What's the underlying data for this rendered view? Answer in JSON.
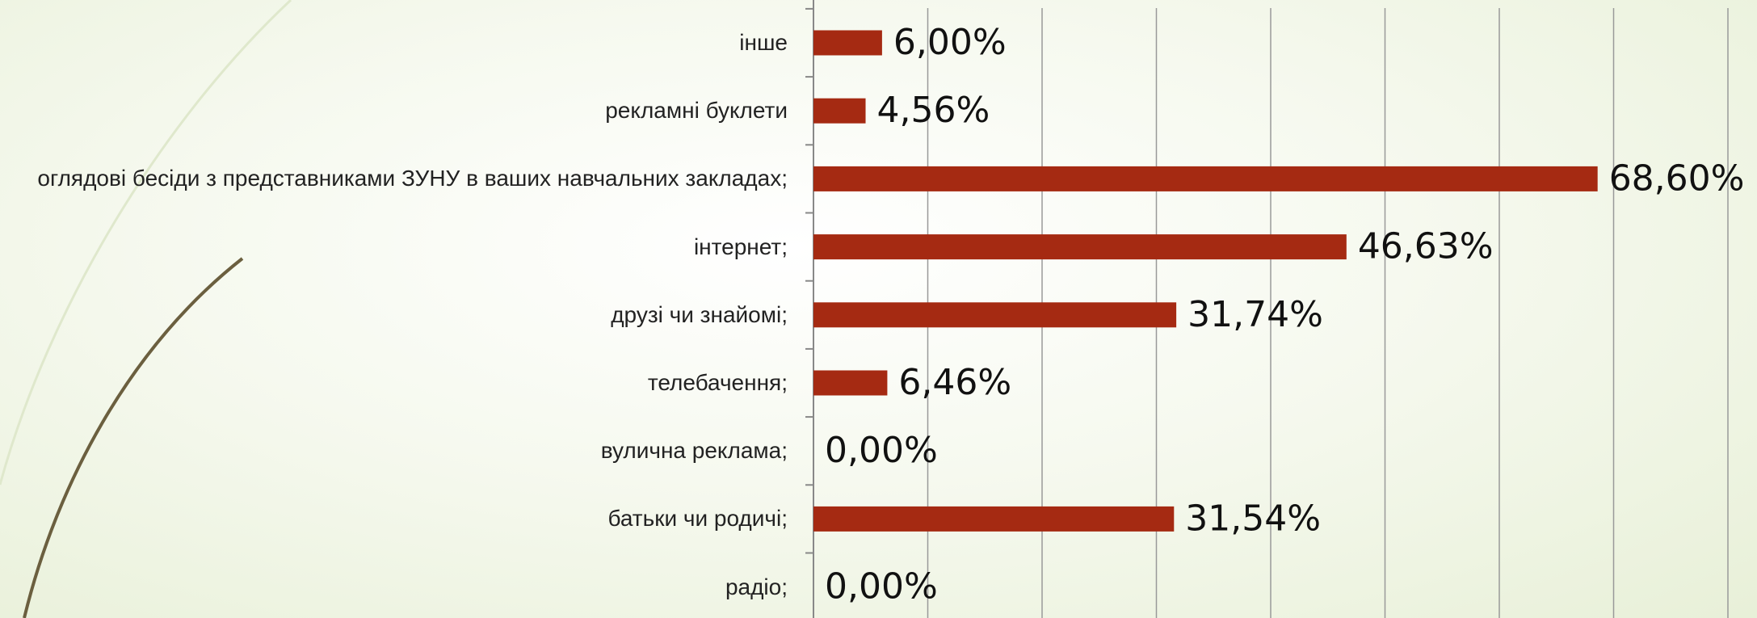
{
  "chart_data": {
    "type": "bar",
    "orientation": "horizontal",
    "categories": [
      "інше",
      "рекламні буклети",
      "оглядові бесіди з представниками ЗУНУ в ваших навчальних закладах;",
      "інтернет;",
      "друзі чи знайомі; ",
      "телебачення; ",
      "вулична реклама;",
      "батьки чи родичі;",
      "радіо;"
    ],
    "values": [
      6.0,
      4.56,
      68.6,
      46.63,
      31.74,
      6.46,
      0.0,
      31.54,
      0.0
    ],
    "value_labels": [
      "6,00%",
      "4,56%",
      "68,60%",
      "46,63%",
      "31,74%",
      "6,46%",
      "0,00%",
      "31,54%",
      "0,00%"
    ],
    "color": "#a52a12",
    "xlim": [
      0,
      80
    ],
    "xticks": [
      0,
      10,
      20,
      30,
      40,
      50,
      60,
      70,
      80
    ],
    "grid": true
  }
}
